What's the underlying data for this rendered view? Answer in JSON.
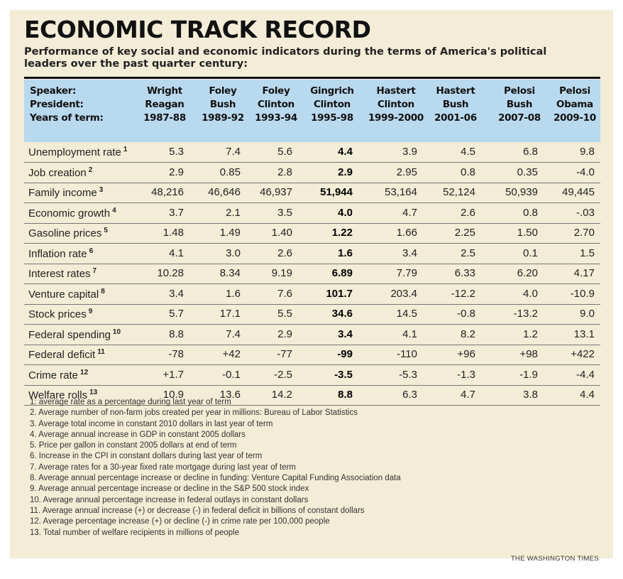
{
  "chart_data": {
    "type": "table",
    "title": "ECONOMIC TRACK RECORD",
    "subtitle": "Performance of key social and economic indicators during the terms of America's political leaders over the past quarter century:",
    "row_headers": [
      "Speaker:",
      "President:",
      "Years of term:"
    ],
    "columns": [
      {
        "speaker": "Wright",
        "president": "Reagan",
        "years": "1987-88"
      },
      {
        "speaker": "Foley",
        "president": "Bush",
        "years": "1989-92"
      },
      {
        "speaker": "Foley",
        "president": "Clinton",
        "years": "1993-94"
      },
      {
        "speaker": "Gingrich",
        "president": "Clinton",
        "years": "1995-98"
      },
      {
        "speaker": "Hastert",
        "president": "Clinton",
        "years": "1999-2000"
      },
      {
        "speaker": "Hastert",
        "president": "Bush",
        "years": "2001-06"
      },
      {
        "speaker": "Pelosi",
        "president": "Bush",
        "years": "2007-08"
      },
      {
        "speaker": "Pelosi",
        "president": "Obama",
        "years": "2009-10"
      }
    ],
    "highlight_column": 3,
    "rows": [
      {
        "label": "Unemployment rate",
        "note": "1",
        "values": [
          "5.3",
          "7.4",
          "5.6",
          "4.4",
          "3.9",
          "4.5",
          "6.8",
          "9.8"
        ]
      },
      {
        "label": "Job creation",
        "note": "2",
        "values": [
          "2.9",
          "0.85",
          "2.8",
          "2.9",
          "2.95",
          "0.8",
          "0.35",
          "-4.0"
        ]
      },
      {
        "label": "Family income",
        "note": "3",
        "values": [
          "48,216",
          "46,646",
          "46,937",
          "51,944",
          "53,164",
          "52,124",
          "50,939",
          "49,445"
        ]
      },
      {
        "label": "Economic growth",
        "note": "4",
        "values": [
          "3.7",
          "2.1",
          "3.5",
          "4.0",
          "4.7",
          "2.6",
          "0.8",
          "-.03"
        ]
      },
      {
        "label": "Gasoline prices",
        "note": "5",
        "values": [
          "1.48",
          "1.49",
          "1.40",
          "1.22",
          "1.66",
          "2.25",
          "1.50",
          "2.70"
        ]
      },
      {
        "label": "Inflation rate",
        "note": "6",
        "values": [
          "4.1",
          "3.0",
          "2.6",
          "1.6",
          "3.4",
          "2.5",
          "0.1",
          "1.5"
        ]
      },
      {
        "label": "Interest rates",
        "note": "7",
        "values": [
          "10.28",
          "8.34",
          "9.19",
          "6.89",
          "7.79",
          "6.33",
          "6.20",
          "4.17"
        ]
      },
      {
        "label": "Venture capital",
        "note": "8",
        "values": [
          "3.4",
          "1.6",
          "7.6",
          "101.7",
          "203.4",
          "-12.2",
          "4.0",
          "-10.9"
        ]
      },
      {
        "label": "Stock prices",
        "note": "9",
        "values": [
          "5.7",
          "17.1",
          "5.5",
          "34.6",
          "14.5",
          "-0.8",
          "-13.2",
          "9.0"
        ]
      },
      {
        "label": "Federal spending",
        "note": "10",
        "values": [
          "8.8",
          "7.4",
          "2.9",
          "3.4",
          "4.1",
          "8.2",
          "1.2",
          "13.1"
        ]
      },
      {
        "label": "Federal deficit",
        "note": "11",
        "values": [
          "-78",
          "+42",
          "-77",
          "-99",
          "-110",
          "+96",
          "+98",
          "+422"
        ]
      },
      {
        "label": "Crime rate",
        "note": "12",
        "values": [
          "+1.7",
          "-0.1",
          "-2.5",
          "-3.5",
          "-5.3",
          "-1.3",
          "-1.9",
          "-4.4"
        ]
      },
      {
        "label": "Welfare rolls",
        "note": "13",
        "values": [
          "10.9",
          "13.6",
          "14.2",
          "8.8",
          "6.3",
          "4.7",
          "3.8",
          "4.4"
        ]
      }
    ],
    "footnotes": [
      "1: average rate as a percentage during last year of term",
      "2. Average number of non-farm jobs created per year in millions:  Bureau of Labor Statistics",
      "3. Average total income in constant 2010 dollars in last year of term",
      "4. Average annual increase in GDP in constant 2005 dollars",
      "5. Price per gallon in constant 2005 dollars at end of term",
      "6. Increase in the CPI in constant dollars during last year of term",
      "7. Average rates for a 30-year fixed rate mortgage during last year of term",
      "8. Average annual percentage increase or decline in funding: Venture Capital Funding Association data",
      "9. Average annual percentage increase or decline in the S&P 500 stock index",
      "10. Average annual percentage increase in federal outlays in constant dollars",
      "11. Average annual increase (+) or decrease (-) in federal deficit in billions of constant dollars",
      "12. Average percentage increase (+) or decline (-) in crime rate per 100,000 people",
      "13. Total number of welfare recipients in millions of people"
    ],
    "source": "THE WASHINGTON TIMES",
    "colors": {
      "background": "#f3ecd6",
      "header": "#b9d9ef",
      "text": "#222222"
    }
  }
}
